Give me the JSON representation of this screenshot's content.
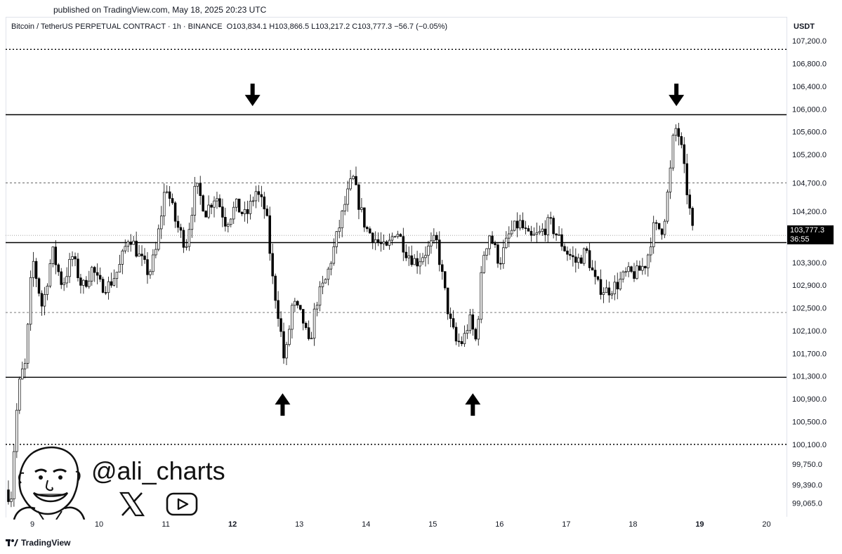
{
  "published": "published on TradingView.com, May 18, 2025 20:23 UTC",
  "header": {
    "symbol": "Bitcoin / TetherUS PERPETUAL CONTRACT · 1h · BINANCE",
    "ohlc": "O103,834.1  H103,866.5  L103,217.2  C103,777.3  −56.7 (−0.05%)"
  },
  "currency": "USDT",
  "price_tag": {
    "price": "103,777.3",
    "countdown": "36:55"
  },
  "watermark": {
    "handle": "@ali_charts",
    "x_icon": "x-logo-icon",
    "youtube_icon": "youtube-icon"
  },
  "footer": {
    "brand": "TradingView"
  },
  "colors": {
    "candle": "#000000",
    "background": "#ffffff",
    "level": "#000000"
  },
  "chart_data": {
    "type": "candlestick",
    "title": "",
    "xlabel": "",
    "ylabel": "",
    "ylim": [
      98900,
      107350
    ],
    "xlim": [
      8.6,
      20.3
    ],
    "x_ticks": [
      {
        "value": 9,
        "label": "9",
        "bold": false
      },
      {
        "value": 10,
        "label": "10",
        "bold": false
      },
      {
        "value": 11,
        "label": "11",
        "bold": false
      },
      {
        "value": 12,
        "label": "12",
        "bold": true
      },
      {
        "value": 13,
        "label": "13",
        "bold": false
      },
      {
        "value": 14,
        "label": "14",
        "bold": false
      },
      {
        "value": 15,
        "label": "15",
        "bold": false
      },
      {
        "value": 16,
        "label": "16",
        "bold": false
      },
      {
        "value": 17,
        "label": "17",
        "bold": false
      },
      {
        "value": 18,
        "label": "18",
        "bold": false
      },
      {
        "value": 19,
        "label": "19",
        "bold": true
      },
      {
        "value": 20,
        "label": "20",
        "bold": false
      }
    ],
    "y_ticks": [
      {
        "value": 107200,
        "label": "107,200.0"
      },
      {
        "value": 106800,
        "label": "106,800.0"
      },
      {
        "value": 106400,
        "label": "106,400.0"
      },
      {
        "value": 106000,
        "label": "106,000.0"
      },
      {
        "value": 105600,
        "label": "105,600.0"
      },
      {
        "value": 105200,
        "label": "105,200.0"
      },
      {
        "value": 104700,
        "label": "104,700.0"
      },
      {
        "value": 104200,
        "label": "104,200.0"
      },
      {
        "value": 103300,
        "label": "103,300.0"
      },
      {
        "value": 102900,
        "label": "102,900.0"
      },
      {
        "value": 102500,
        "label": "102,500.0"
      },
      {
        "value": 102100,
        "label": "102,100.0"
      },
      {
        "value": 101700,
        "label": "101,700.0"
      },
      {
        "value": 101300,
        "label": "101,300.0"
      },
      {
        "value": 100900,
        "label": "100,900.0"
      },
      {
        "value": 100500,
        "label": "100,500.0"
      },
      {
        "value": 100100,
        "label": "100,100.0"
      },
      {
        "value": 99750,
        "label": "99,750.0"
      },
      {
        "value": 99390,
        "label": "99,390.0"
      },
      {
        "value": 99065,
        "label": "99,065.0"
      }
    ],
    "horizontal_levels": [
      {
        "price": 105900,
        "style": "solid"
      },
      {
        "price": 103650,
        "style": "solid"
      },
      {
        "price": 101280,
        "style": "solid"
      },
      {
        "price": 107050,
        "style": "dotted"
      },
      {
        "price": 104700,
        "style": "dashed"
      },
      {
        "price": 102420,
        "style": "dashed"
      },
      {
        "price": 100100,
        "style": "dotted"
      },
      {
        "price": 103777,
        "style": "dotted-light"
      }
    ],
    "arrows": [
      {
        "x": 12.3,
        "price": 106200,
        "direction": "down"
      },
      {
        "x": 18.65,
        "price": 106200,
        "direction": "down"
      },
      {
        "x": 12.75,
        "price": 100850,
        "direction": "up"
      },
      {
        "x": 15.6,
        "price": 100850,
        "direction": "up"
      }
    ],
    "anchors": [
      [
        8.6,
        99300
      ],
      [
        8.68,
        99150
      ],
      [
        8.75,
        100500
      ],
      [
        8.82,
        101300
      ],
      [
        8.9,
        101500
      ],
      [
        9.0,
        103400
      ],
      [
        9.15,
        102500
      ],
      [
        9.3,
        103500
      ],
      [
        9.45,
        102900
      ],
      [
        9.6,
        103400
      ],
      [
        9.75,
        102850
      ],
      [
        9.9,
        103200
      ],
      [
        10.0,
        102900
      ],
      [
        10.15,
        102900
      ],
      [
        10.3,
        103200
      ],
      [
        10.45,
        103800
      ],
      [
        10.6,
        103400
      ],
      [
        10.75,
        103100
      ],
      [
        10.85,
        103500
      ],
      [
        11.0,
        104700
      ],
      [
        11.15,
        104000
      ],
      [
        11.3,
        103600
      ],
      [
        11.45,
        104650
      ],
      [
        11.6,
        104200
      ],
      [
        11.75,
        104500
      ],
      [
        11.9,
        104000
      ],
      [
        12.05,
        104300
      ],
      [
        12.2,
        104100
      ],
      [
        12.35,
        104550
      ],
      [
        12.5,
        104200
      ],
      [
        12.6,
        103000
      ],
      [
        12.7,
        102300
      ],
      [
        12.78,
        101500
      ],
      [
        12.9,
        102600
      ],
      [
        13.05,
        102300
      ],
      [
        13.15,
        101800
      ],
      [
        13.25,
        102600
      ],
      [
        13.4,
        103000
      ],
      [
        13.55,
        103700
      ],
      [
        13.7,
        104400
      ],
      [
        13.8,
        104800
      ],
      [
        13.9,
        104300
      ],
      [
        14.0,
        103900
      ],
      [
        14.15,
        103700
      ],
      [
        14.3,
        103500
      ],
      [
        14.45,
        103900
      ],
      [
        14.6,
        103500
      ],
      [
        14.75,
        103300
      ],
      [
        14.9,
        103500
      ],
      [
        15.05,
        103700
      ],
      [
        15.15,
        103000
      ],
      [
        15.25,
        102300
      ],
      [
        15.35,
        101900
      ],
      [
        15.45,
        101900
      ],
      [
        15.55,
        102300
      ],
      [
        15.65,
        101900
      ],
      [
        15.75,
        103400
      ],
      [
        15.85,
        103800
      ],
      [
        16.0,
        103300
      ],
      [
        16.15,
        103800
      ],
      [
        16.3,
        104000
      ],
      [
        16.45,
        103700
      ],
      [
        16.6,
        103800
      ],
      [
        16.75,
        104000
      ],
      [
        16.9,
        103700
      ],
      [
        17.0,
        103500
      ],
      [
        17.15,
        103300
      ],
      [
        17.3,
        103500
      ],
      [
        17.45,
        102900
      ],
      [
        17.6,
        102800
      ],
      [
        17.75,
        102900
      ],
      [
        17.9,
        103100
      ],
      [
        18.05,
        103100
      ],
      [
        18.2,
        103300
      ],
      [
        18.3,
        103900
      ],
      [
        18.45,
        103900
      ],
      [
        18.55,
        104800
      ],
      [
        18.62,
        105700
      ],
      [
        18.7,
        105500
      ],
      [
        18.78,
        104800
      ],
      [
        18.85,
        104200
      ],
      [
        18.9,
        103777
      ]
    ]
  }
}
